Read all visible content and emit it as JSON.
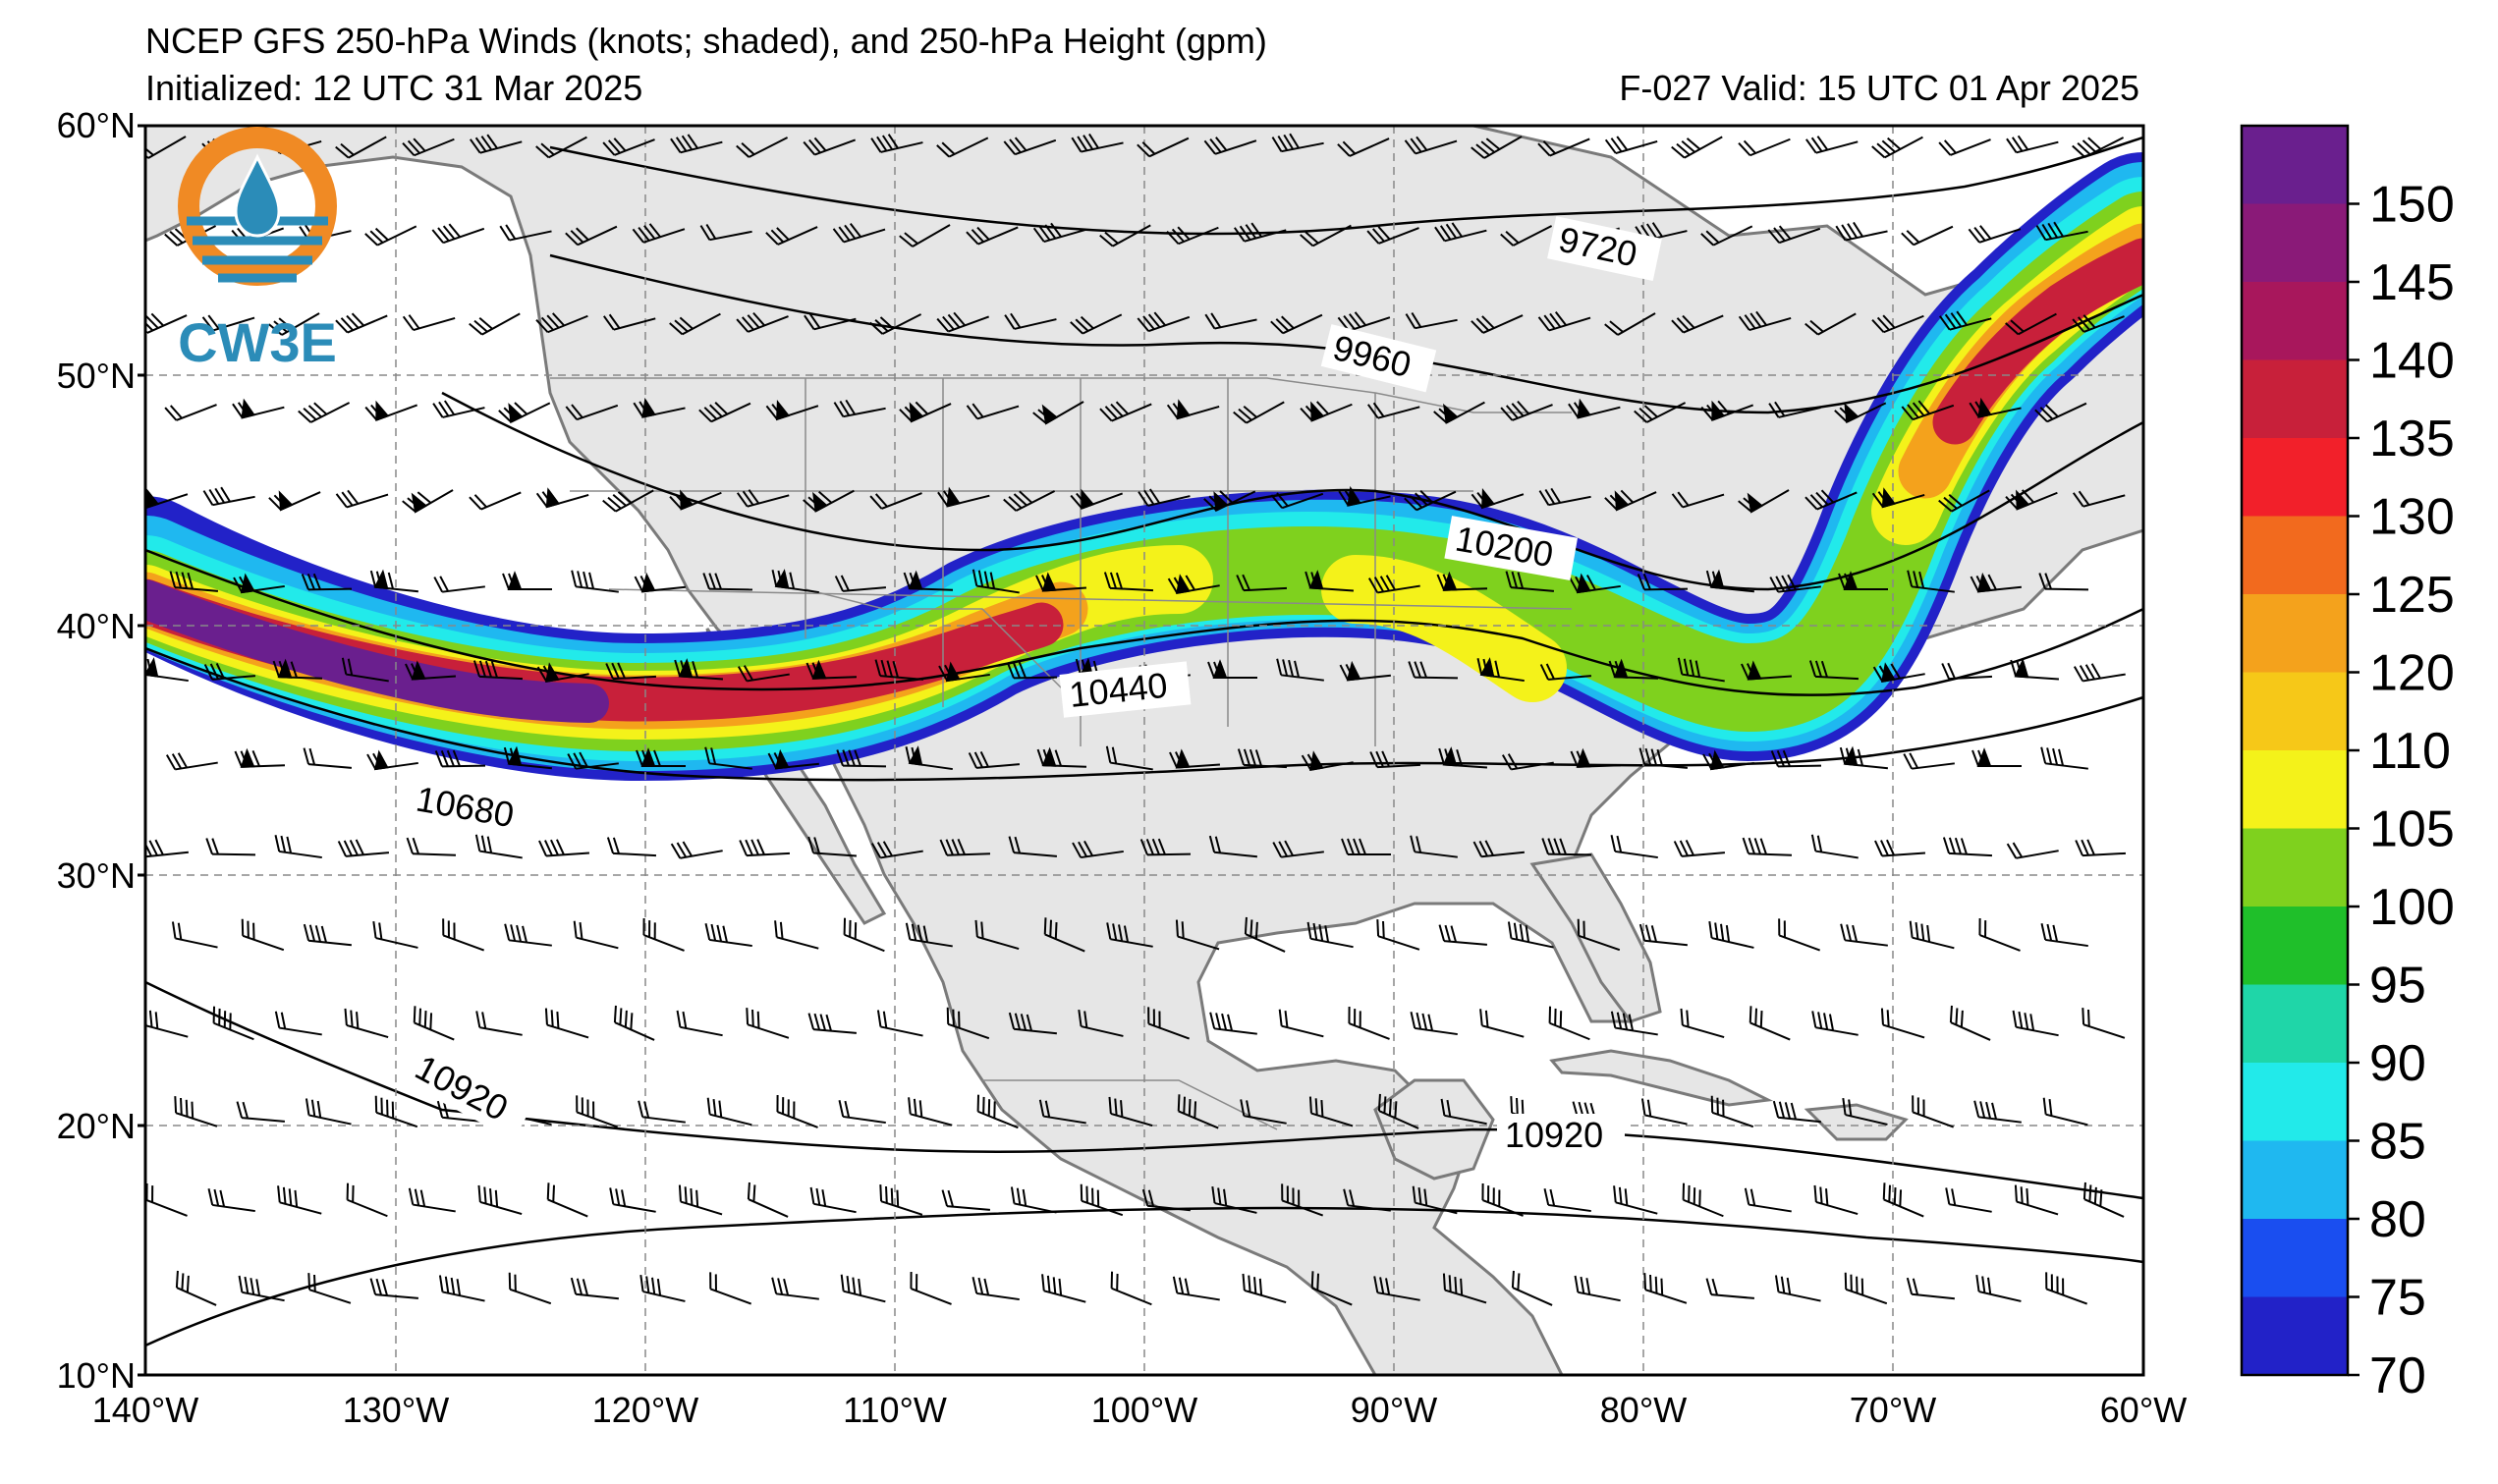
{
  "header": {
    "title": "NCEP GFS 250-hPa Winds (knots; shaded), and 250-hPa Height (gpm)",
    "init": "Initialized: 12 UTC 31 Mar 2025",
    "valid": "F-027  Valid: 15 UTC 01 Apr 2025"
  },
  "logo": {
    "text": "CW3E",
    "icon": "water-drop-sun-icon"
  },
  "axes": {
    "lat_labels": [
      "60°N",
      "50°N",
      "40°N",
      "30°N",
      "20°N",
      "10°N"
    ],
    "lon_labels": [
      "140°W",
      "130°W",
      "120°W",
      "110°W",
      "100°W",
      "90°W",
      "80°W",
      "70°W",
      "60°W"
    ]
  },
  "contour_labels": [
    "9720",
    "9960",
    "10200",
    "10440",
    "10680",
    "10920",
    "10920"
  ],
  "colorbar": {
    "labels": [
      "150",
      "145",
      "140",
      "135",
      "130",
      "125",
      "120",
      "110",
      "105",
      "100",
      "95",
      "90",
      "85",
      "80",
      "75",
      "70"
    ],
    "colors": [
      "#6a1f8e",
      "#8a1a78",
      "#a8175c",
      "#c8203a",
      "#f2202a",
      "#f26a1e",
      "#f4a21c",
      "#f6c818",
      "#f4f21a",
      "#7fd11e",
      "#1fbf2a",
      "#1fd6a8",
      "#22eaea",
      "#1fb8f0",
      "#1a4ef0",
      "#2222c8"
    ]
  },
  "colors": {
    "land": "#e6e6e6",
    "ocean": "#ffffff",
    "coast": "#7a7a7a",
    "grid": "#888888",
    "logo_orange": "#f08a24",
    "logo_blue": "#2b8cb8"
  }
}
